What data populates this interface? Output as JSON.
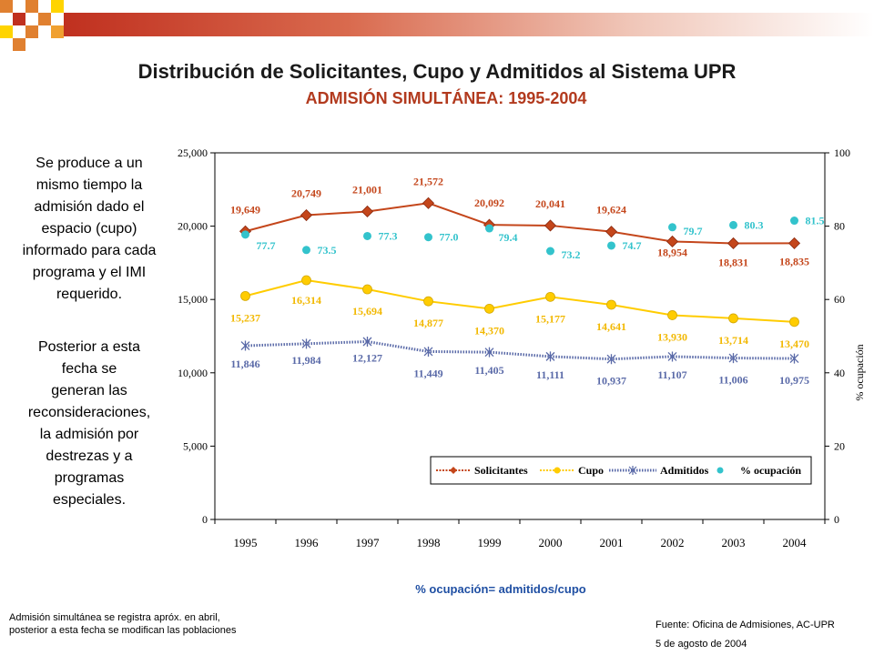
{
  "title": "Distribución de Solicitantes, Cupo y Admitidos al Sistema UPR",
  "subtitle": "ADMISIÓN SIMULTÁNEA: 1995-2004",
  "side_text_1": [
    "Se produce a un",
    "mismo tiempo la",
    "admisión dado el",
    "espacio (cupo)",
    "informado para cada",
    "programa y el IMI",
    "requerido."
  ],
  "side_text_2": [
    "Posterior a esta",
    "fecha se",
    "generan las",
    "reconsideraciones,",
    "la admisión por",
    "destrezas y a",
    "programas",
    "especiales."
  ],
  "formula": "% ocupación= admitidos/cupo",
  "note": [
    "Admisión simultánea se registra apróx. en abril,",
    "posterior a esta fecha se modifican las poblaciones"
  ],
  "source": "Fuente: Oficina de Admisiones, AC-UPR",
  "source_date": "5 de agosto de 2004",
  "colors": {
    "solicitantes": "#c4461b",
    "cupo": "#ffcc00",
    "admitidos": "#5a6aa8",
    "ocupacion": "#33c3cc",
    "subtitle": "#b23a1e",
    "formula": "#1f4fa3"
  },
  "chart_data": {
    "type": "line",
    "categories": [
      "1995",
      "1996",
      "1997",
      "1998",
      "1999",
      "2000",
      "2001",
      "2002",
      "2003",
      "2004"
    ],
    "y_left": {
      "ticks": [
        "0",
        "5,000",
        "10,000",
        "15,000",
        "20,000",
        "25,000"
      ],
      "range": [
        0,
        25000
      ]
    },
    "y_right": {
      "ticks": [
        "0",
        "20",
        "40",
        "60",
        "80",
        "100"
      ],
      "range": [
        0,
        100
      ],
      "label": "% ocupación"
    },
    "series": [
      {
        "name": "Solicitantes",
        "axis": "left",
        "marker": "diamond",
        "values": [
          19649,
          20749,
          21001,
          21572,
          20092,
          20041,
          19624,
          18954,
          18831,
          18835
        ],
        "labels": [
          "19,649",
          "20,749",
          "21,001",
          "21,572",
          "20,092",
          "20,041",
          "19,624",
          "18,954",
          "18,831",
          "18,835"
        ]
      },
      {
        "name": "Cupo",
        "axis": "left",
        "marker": "circle",
        "values": [
          15237,
          16314,
          15694,
          14877,
          14370,
          15177,
          14641,
          13930,
          13714,
          13470
        ],
        "labels": [
          "15,237",
          "16,314",
          "15,694",
          "14,877",
          "14,370",
          "15,177",
          "14,641",
          "13,930",
          "13,714",
          "13,470"
        ]
      },
      {
        "name": "Admitidos",
        "axis": "left",
        "marker": "star",
        "values": [
          11846,
          11984,
          12127,
          11449,
          11405,
          11111,
          10937,
          11107,
          11006,
          10975
        ],
        "labels": [
          "11,846",
          "11,984",
          "12,127",
          "11,449",
          "11,405",
          "11,111",
          "10,937",
          "11,107",
          "11,006",
          "10,975"
        ]
      },
      {
        "name": "% ocupación",
        "axis": "right",
        "marker": "dot",
        "values": [
          77.7,
          73.5,
          77.3,
          77.0,
          79.4,
          73.2,
          74.7,
          79.7,
          80.3,
          81.5
        ],
        "labels": [
          "77.7",
          "73.5",
          "77.3",
          "77.0",
          "79.4",
          "73.2",
          "74.7",
          "79.7",
          "80.3",
          "81.5"
        ]
      }
    ],
    "legend": [
      "Solicitantes",
      "Cupo",
      "Admitidos",
      "% ocupación"
    ],
    "legend_placement": "bottom-inside",
    "grid": false
  }
}
